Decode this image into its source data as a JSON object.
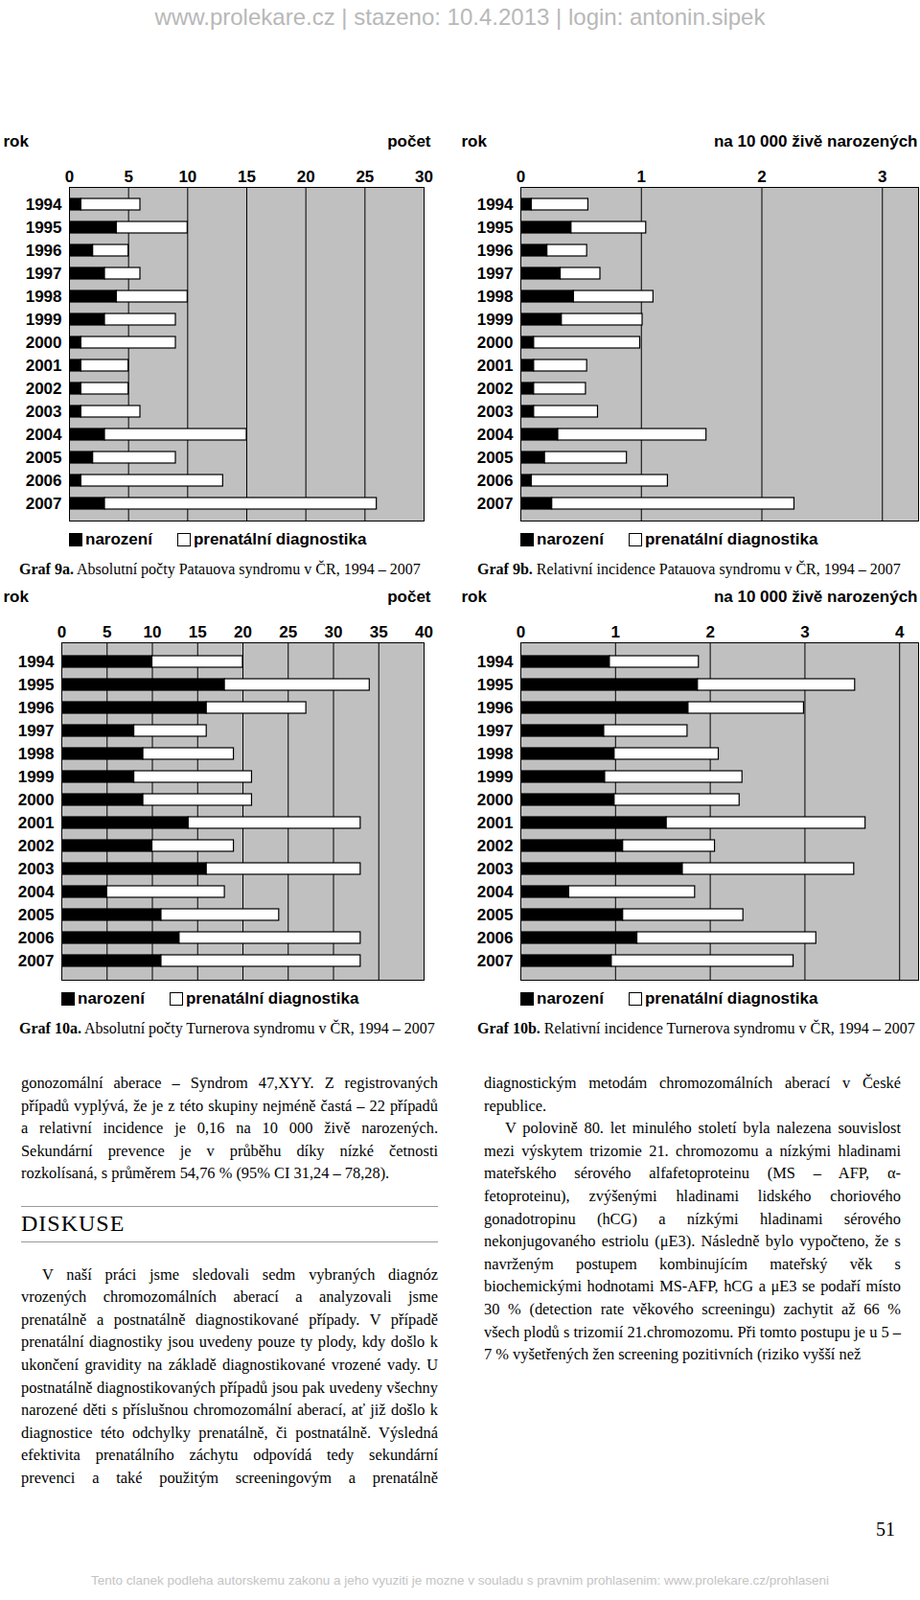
{
  "header": "www.prolekare.cz | stazeno: 10.4.2013 | login: antonin.sipek",
  "chart_data": [
    {
      "type": "bar",
      "orientation": "horizontal",
      "stacked": true,
      "title": "Graf 9a. Absolutní počty Patauova syndromu v ČR, 1994 – 2007",
      "xlabel": "počet",
      "ylabel": "rok",
      "categories": [
        "1994",
        "1995",
        "1996",
        "1997",
        "1998",
        "1999",
        "2000",
        "2001",
        "2002",
        "2003",
        "2004",
        "2005",
        "2006",
        "2007"
      ],
      "series": [
        {
          "name": "narození",
          "color": "#000000",
          "values": [
            1,
            4,
            2,
            3,
            4,
            3,
            1,
            1,
            1,
            1,
            3,
            2,
            1,
            3
          ]
        },
        {
          "name": "prenatální diagnostika",
          "color": "#ffffff",
          "values": [
            5,
            6,
            3,
            3,
            6,
            6,
            8,
            4,
            4,
            5,
            12,
            7,
            12,
            23
          ]
        }
      ],
      "xlim": [
        0,
        30
      ],
      "xticks": [
        0,
        5,
        10,
        15,
        20,
        25,
        30
      ],
      "grid": true,
      "legend": "bottom"
    },
    {
      "type": "bar",
      "orientation": "horizontal",
      "stacked": true,
      "title": "Graf 9b. Relativní incidence Patauova syndromu v ČR, 1994 – 2007",
      "xlabel": "na 10 000 živě narozených",
      "ylabel": "rok",
      "categories": [
        "1994",
        "1995",
        "1996",
        "1997",
        "1998",
        "1999",
        "2000",
        "2001",
        "2002",
        "2003",
        "2004",
        "2005",
        "2006",
        "2007"
      ],
      "series": [
        {
          "name": "narození",
          "color": "#000000",
          "values": [
            0.09,
            0.42,
            0.22,
            0.33,
            0.44,
            0.34,
            0.11,
            0.11,
            0.11,
            0.11,
            0.31,
            0.2,
            0.09,
            0.26
          ]
        },
        {
          "name": "prenatální diagnostika",
          "color": "#ffffff",
          "values": [
            0.47,
            0.62,
            0.33,
            0.33,
            0.66,
            0.67,
            0.88,
            0.44,
            0.43,
            0.53,
            1.23,
            0.68,
            1.13,
            2.01
          ]
        }
      ],
      "xlim": [
        0,
        3.3
      ],
      "xticks": [
        0,
        1,
        2,
        3
      ],
      "grid": true,
      "legend": "bottom"
    },
    {
      "type": "bar",
      "orientation": "horizontal",
      "stacked": true,
      "title": "Graf 10a. Absolutní počty Turnerova syndromu v ČR, 1994 – 2007",
      "xlabel": "počet",
      "ylabel": "rok",
      "categories": [
        "1994",
        "1995",
        "1996",
        "1997",
        "1998",
        "1999",
        "2000",
        "2001",
        "2002",
        "2003",
        "2004",
        "2005",
        "2006",
        "2007"
      ],
      "series": [
        {
          "name": "narození",
          "color": "#000000",
          "values": [
            10,
            18,
            16,
            8,
            9,
            8,
            9,
            14,
            10,
            16,
            5,
            11,
            13,
            11
          ]
        },
        {
          "name": "prenatální diagnostika",
          "color": "#ffffff",
          "values": [
            10,
            16,
            11,
            8,
            10,
            13,
            12,
            19,
            9,
            17,
            13,
            13,
            20,
            22
          ]
        }
      ],
      "xlim": [
        0,
        40
      ],
      "xticks": [
        0,
        5,
        10,
        15,
        20,
        25,
        30,
        35,
        40
      ],
      "grid": true,
      "legend": "bottom"
    },
    {
      "type": "bar",
      "orientation": "horizontal",
      "stacked": true,
      "title": "Graf 10b. Relativní incidence Turnerova syndromu v ČR, 1994 – 2007",
      "xlabel": "na 10 000 živě narozených",
      "ylabel": "rok",
      "categories": [
        "1994",
        "1995",
        "1996",
        "1997",
        "1998",
        "1999",
        "2000",
        "2001",
        "2002",
        "2003",
        "2004",
        "2005",
        "2006",
        "2007"
      ],
      "series": [
        {
          "name": "narození",
          "color": "#000000",
          "values": [
            0.94,
            1.87,
            1.77,
            0.88,
            0.99,
            0.89,
            0.99,
            1.54,
            1.08,
            1.71,
            0.51,
            1.08,
            1.23,
            0.96
          ]
        },
        {
          "name": "prenatální diagnostika",
          "color": "#ffffff",
          "values": [
            0.94,
            1.66,
            1.22,
            0.88,
            1.1,
            1.45,
            1.32,
            2.1,
            0.97,
            1.81,
            1.33,
            1.27,
            1.89,
            1.92
          ]
        }
      ],
      "xlim": [
        0,
        4.2
      ],
      "xticks": [
        0,
        1,
        2,
        3,
        4
      ],
      "grid": true,
      "legend": "bottom"
    }
  ],
  "body": [
    {
      "p": "gonozomální aberace – Syndrom 47,XYY. Z registrovaných případů vyplývá, že je z této skupiny nejméně častá – 22 případů a relativní incidence je 0,16 na 10 000 živě narozených. Sekundární prevence je v průběhu díky nízké četnosti rozkolísaná, s průměrem 54,76 % (95% CI 31,24 – 78,28)."
    },
    {
      "h": "DISKUSE"
    },
    {
      "p": "V naší práci jsme sledovali sedm vybraných diagnóz vrozených chromozomálních aberací a analyzovali jsme prenatálně a postnatálně diagnostikované případy. V případě prenatální diagnostiky jsou uvedeny pouze ty plody, kdy došlo k ukončení gravidity na základě diagnostikované vrozené vady. U postnatálně diagnostikovaných případů jsou pak uvedeny všechny narozené děti s příslušnou chromozomální aberací, ať již došlo k diagnostice této odchylky prenatálně, či postnatálně. Výsledná efektivita prenatálního záchytu odpovídá tedy sekundární prevenci a také použitým screeningovým a prenatálně diagnostickým metodám chromozomálních aberací v České republice."
    },
    {
      "p": "V polovině 80. let minulého století byla nalezena souvislost mezi výskytem trizomie 21. chromozomu a nízkými hladinami mateřského sérového alfafetoproteinu (MS – AFP, α-fetoproteinu), zvýšenými hladinami lidského choriového gonadotropinu (hCG) a nízkými hladinami sérového nekonjugovaného estriolu (μE3). Následně bylo vypočteno, že s navrženým postupem kombinujícím mateřský věk s biochemickými hodnotami MS-AFP, hCG a μE3 se podaří místo 30 % (detection rate věkového screeningu) zachytit až 66 % všech plodů s trizomií 21.chromozomu. Při tomto postupu je u 5 – 7 % vyšetřených žen screening pozitivních (riziko vyšší než"
    }
  ],
  "page_number": 51,
  "footer": "Tento clanek podleha autorskemu zakonu a jeho vyuziti je mozne v souladu s pravnim prohlasenim: www.prolekare.cz/prohlaseni"
}
